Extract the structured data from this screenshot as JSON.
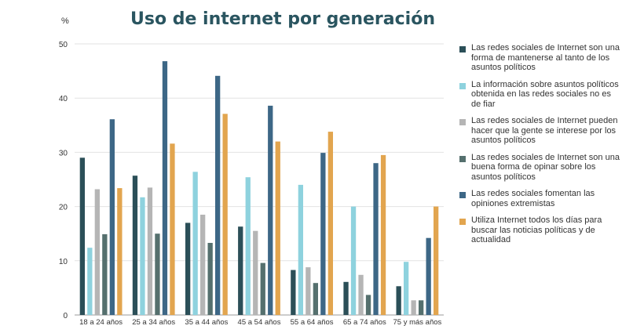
{
  "chart_data": {
    "type": "bar",
    "title": "Uso de internet por generación",
    "ylabel": "%",
    "xlabel": "",
    "ylim": [
      0,
      50
    ],
    "yticks": [
      0,
      10,
      20,
      30,
      40,
      50
    ],
    "grid": true,
    "legend_position": "right",
    "categories": [
      "18 a 24 años",
      "25 a 34 años",
      "35 a 44 años",
      "45 a 54 años",
      "55 a 64 años",
      "65 a 74 años",
      "75 y más años"
    ],
    "series": [
      {
        "name": "Las redes sociales de Internet son una forma de mantenerse al tanto de los asuntos políticos",
        "color": "#2b4f58",
        "values": [
          29,
          25.7,
          17,
          16.3,
          8.3,
          6.1,
          5.3
        ]
      },
      {
        "name": "La información sobre asuntos políticos obtenida en las redes sociales no es de fiar",
        "color": "#8ed2de",
        "values": [
          12.4,
          21.7,
          26.4,
          25.4,
          24,
          20,
          9.8
        ]
      },
      {
        "name": "Las redes sociales de Internet pueden hacer que la gente se interese por los asuntos políticos",
        "color": "#b5b5b5",
        "values": [
          23.2,
          23.5,
          18.5,
          15.5,
          8.8,
          7.4,
          2.7
        ]
      },
      {
        "name": "Las redes sociales de Internet son una buena forma de opinar sobre los asuntos políticos",
        "color": "#55706e",
        "values": [
          14.9,
          15,
          13.3,
          9.6,
          5.9,
          3.7,
          2.7
        ]
      },
      {
        "name": "Las redes sociales fomentan las opiniones extremistas",
        "color": "#3d6786",
        "values": [
          36.1,
          46.8,
          44.1,
          38.6,
          29.9,
          28,
          14.2
        ]
      },
      {
        "name": "Utiliza Internet todos los días  para buscar las noticias políticas y de actualidad",
        "color": "#e2a54f",
        "values": [
          23.4,
          31.6,
          37.1,
          32,
          33.8,
          29.5,
          20
        ]
      }
    ]
  }
}
